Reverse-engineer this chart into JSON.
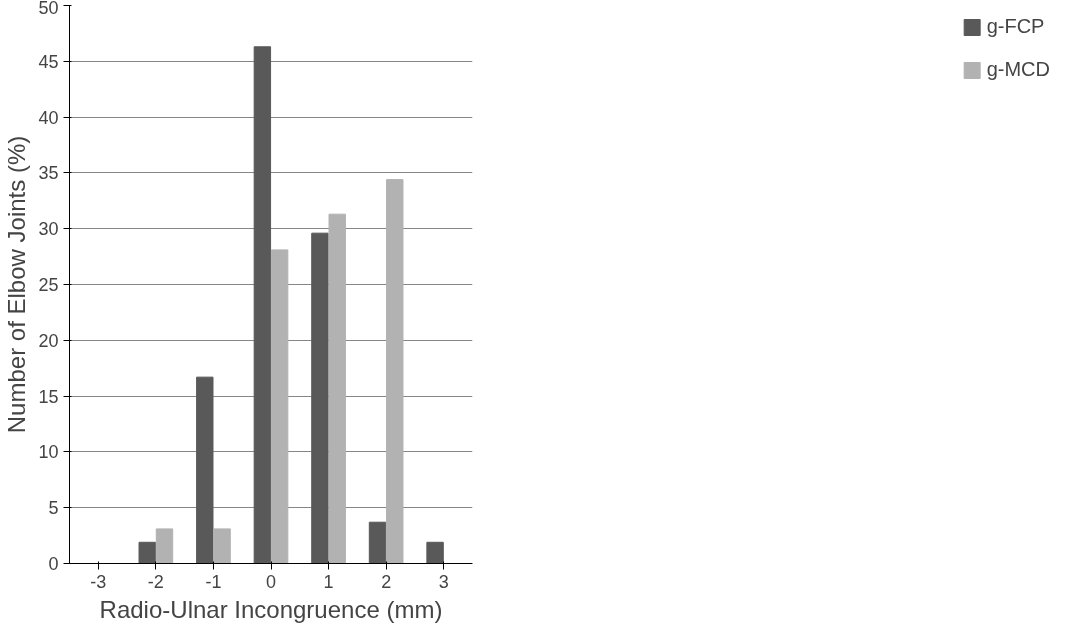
{
  "chart_data": {
    "type": "bar",
    "xlabel": "Radio-Ulnar Incongruence (mm)",
    "ylabel": "Number of Elbow Joints (%)",
    "categories": [
      "-3",
      "-2",
      "-1",
      "0",
      "1",
      "2",
      "3"
    ],
    "series": [
      {
        "name": "g-FCP",
        "color": "#595959",
        "values": [
          0,
          1.9,
          16.7,
          46.3,
          29.6,
          3.7,
          1.9
        ]
      },
      {
        "name": "g-MCD",
        "color": "#b2b2b2",
        "values": [
          0,
          3.1,
          3.1,
          28.1,
          31.3,
          34.4,
          0
        ]
      }
    ],
    "ylim": [
      0,
      50
    ],
    "yticks": [
      0,
      5,
      10,
      15,
      20,
      25,
      30,
      35,
      40,
      45,
      50
    ],
    "grid": "y",
    "legend": "right"
  }
}
